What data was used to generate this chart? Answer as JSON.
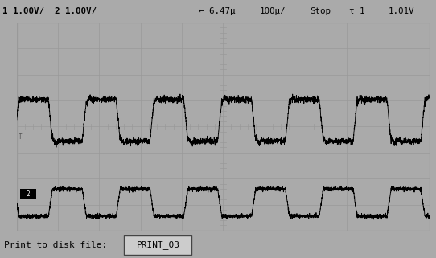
{
  "bg_outer": "#aaaaaa",
  "bg_screen": "#e4e4e4",
  "grid_major_color": "#999999",
  "grid_minor_color": "#bbbbbb",
  "signal_color": "#000000",
  "header_bg": "#888888",
  "footer_bg": "#888888",
  "header_text_left": "1 1.00V/  2 1.00V/",
  "header_text_mid": "← 6.47µ",
  "header_text_div": "100µ/",
  "header_text_stop": "Stop",
  "header_text_trig": "τ 1",
  "header_text_volt": "1.01V",
  "footer_left": "Print to disk file:",
  "footer_label": "PRINT_03",
  "n_cols": 10,
  "n_rows": 8,
  "period": 0.164,
  "rise": 0.01,
  "d_plus_high": 0.63,
  "d_plus_low": 0.43,
  "d_minus_high": 0.2,
  "d_minus_low": 0.07,
  "noise_amp": 0.007
}
